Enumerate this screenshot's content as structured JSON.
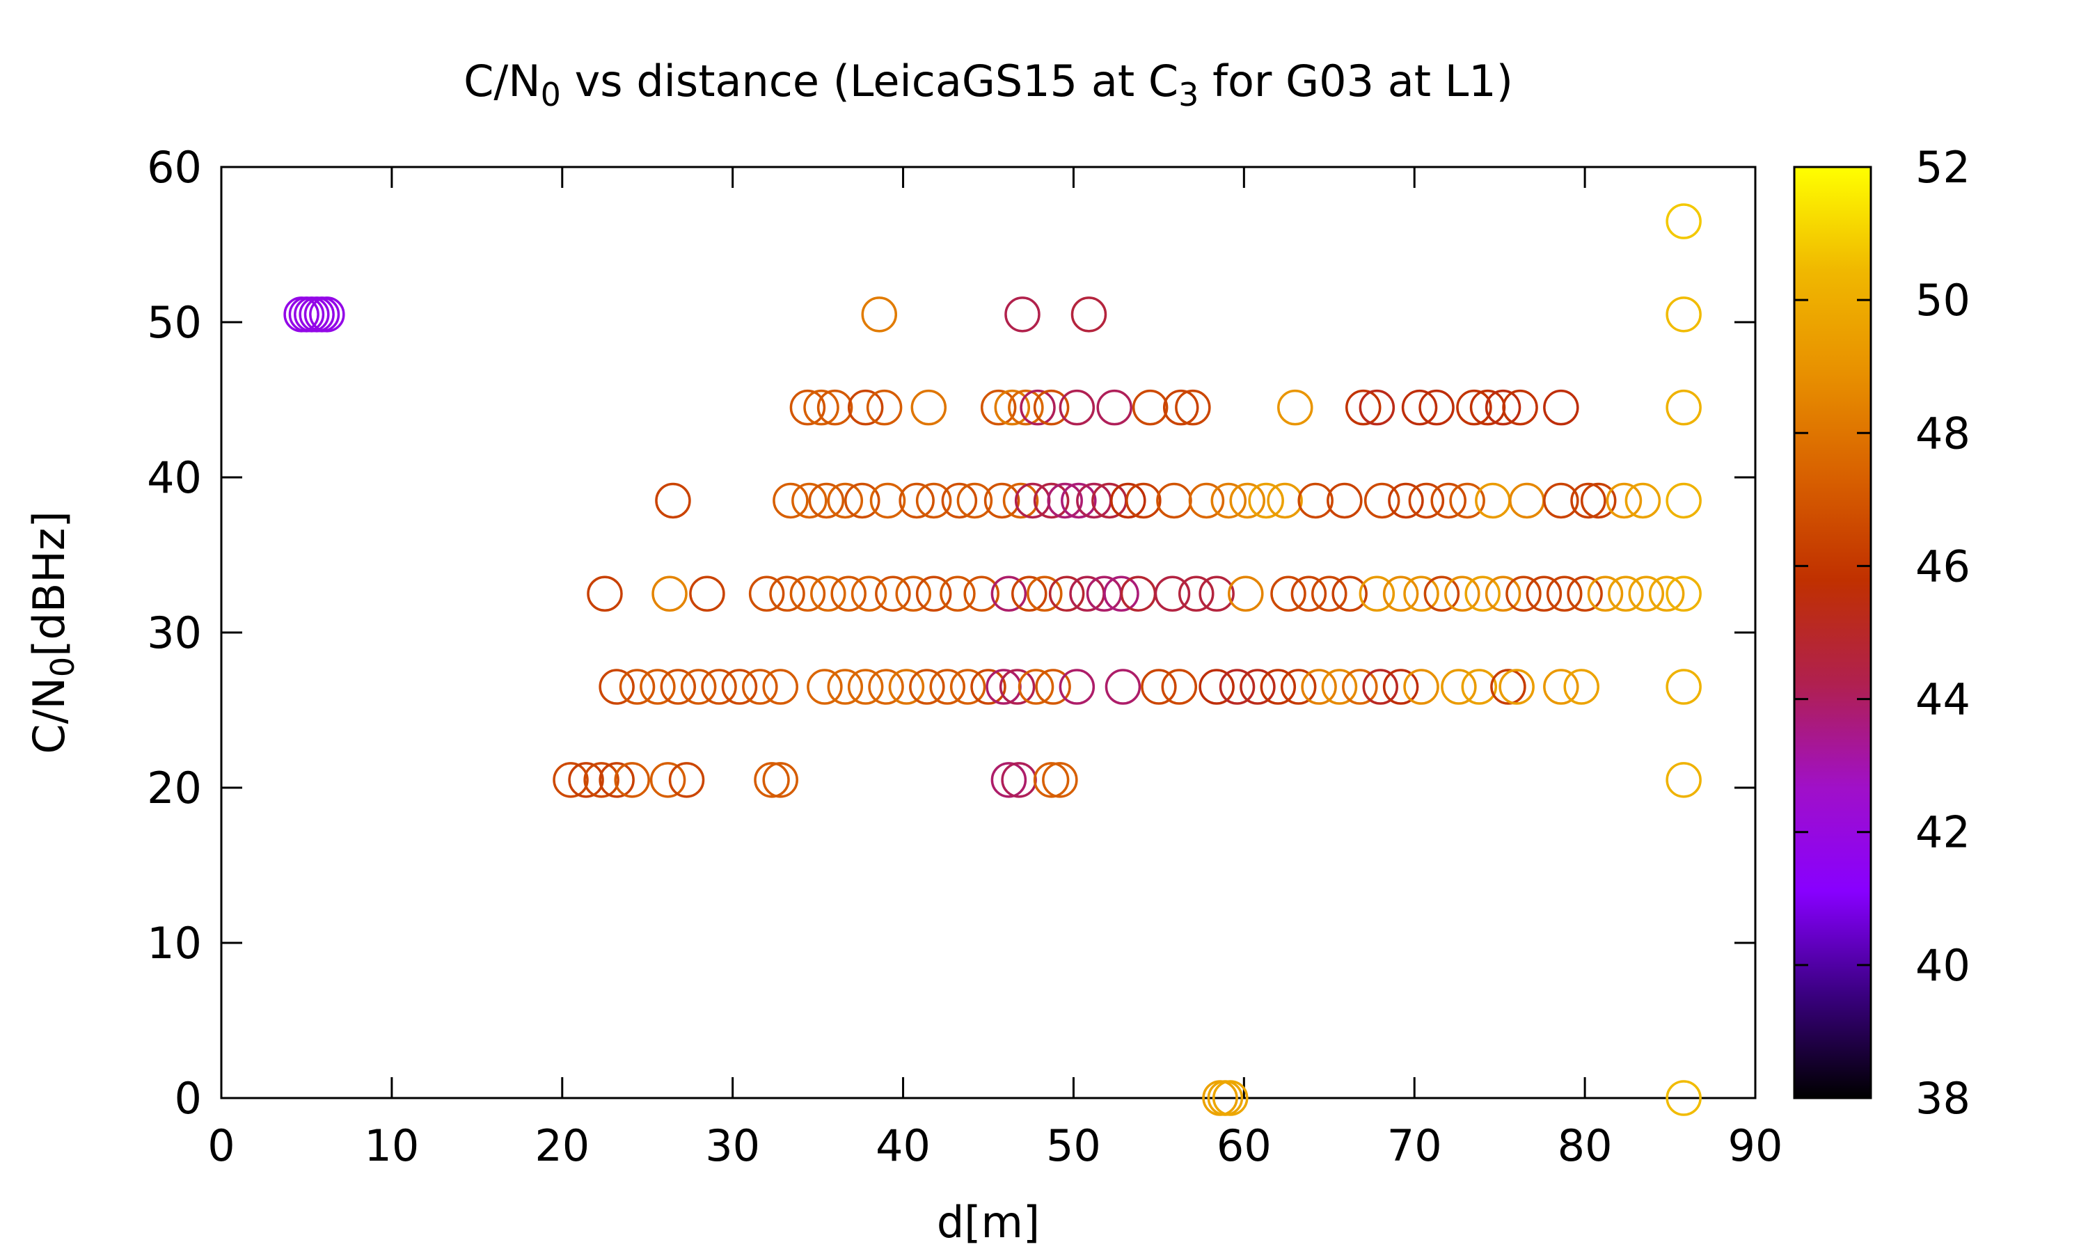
{
  "chart_data": {
    "type": "scatter",
    "title": {
      "pre": "C/N",
      "sub1": "0",
      "mid": " vs distance (LeicaGS15 at C",
      "sub2": "3",
      "post": " for G03 at L1)"
    },
    "xlabel": "d[m]",
    "ylabel": {
      "pre": "C/N",
      "sub": "0",
      "post": "[dBHz]"
    },
    "xlim": [
      0,
      90
    ],
    "ylim": [
      0,
      60
    ],
    "xticks": [
      0,
      10,
      20,
      30,
      40,
      50,
      60,
      70,
      80,
      90
    ],
    "yticks": [
      0,
      10,
      20,
      30,
      40,
      50,
      60
    ],
    "colorbar": {
      "range": [
        38,
        52
      ],
      "ticks": [
        38,
        40,
        42,
        44,
        46,
        48,
        50,
        52
      ],
      "colormap": [
        "#000000",
        "#3a0080",
        "#8800ff",
        "#a010c8",
        "#b02050",
        "#c03000",
        "#d86000",
        "#e89000",
        "#f0b800",
        "#ffff00"
      ]
    },
    "marker": "open-circle",
    "grid": false,
    "points": [
      [
        5,
        50.5,
        41.8
      ],
      [
        5.3,
        50.5,
        41.8
      ],
      [
        5.6,
        50.5,
        41.8
      ],
      [
        5.9,
        50.5,
        41.8
      ],
      [
        6.2,
        50.5,
        41.8
      ],
      [
        4.7,
        50.5,
        41.8
      ],
      [
        38.6,
        50.5,
        48.2
      ],
      [
        47,
        50.5,
        44.3
      ],
      [
        50.9,
        50.5,
        44.6
      ],
      [
        34.4,
        44.5,
        47
      ],
      [
        35.2,
        44.5,
        47.3
      ],
      [
        36,
        44.5,
        47.1
      ],
      [
        37.8,
        44.5,
        46.5
      ],
      [
        38.9,
        44.5,
        47.2
      ],
      [
        41.5,
        44.5,
        48
      ],
      [
        45.6,
        44.5,
        47
      ],
      [
        46.4,
        44.5,
        48.2
      ],
      [
        47.2,
        44.5,
        47.6
      ],
      [
        47.9,
        44.5,
        44.1
      ],
      [
        48.7,
        44.5,
        46.8
      ],
      [
        50.2,
        44.5,
        44.2
      ],
      [
        52.4,
        44.5,
        44.1
      ],
      [
        54.5,
        44.5,
        46.6
      ],
      [
        56.3,
        44.5,
        46.4
      ],
      [
        57,
        44.5,
        46.5
      ],
      [
        63,
        44.5,
        49.1
      ],
      [
        67,
        44.5,
        45.9
      ],
      [
        67.8,
        44.5,
        45.3
      ],
      [
        70.3,
        44.5,
        45.6
      ],
      [
        71.3,
        44.5,
        45.6
      ],
      [
        73.5,
        44.5,
        45.9
      ],
      [
        74.3,
        44.5,
        45.8
      ],
      [
        75.2,
        44.5,
        45.5
      ],
      [
        76.2,
        44.5,
        45.9
      ],
      [
        78.6,
        44.5,
        45.6
      ],
      [
        85.8,
        44.5,
        50.2
      ],
      [
        26.5,
        38.5,
        46.4
      ],
      [
        33.4,
        38.5,
        47.3
      ],
      [
        34.5,
        38.5,
        47.4
      ],
      [
        35.5,
        38.5,
        47.1
      ],
      [
        36.6,
        38.5,
        47.4
      ],
      [
        37.6,
        38.5,
        46.8
      ],
      [
        39.1,
        38.5,
        47.4
      ],
      [
        40.8,
        38.5,
        46.9
      ],
      [
        41.8,
        38.5,
        47.1
      ],
      [
        43.3,
        38.5,
        46.8
      ],
      [
        44.2,
        38.5,
        47.2
      ],
      [
        45.8,
        38.5,
        46.9
      ],
      [
        46.9,
        38.5,
        47.4
      ],
      [
        47.6,
        38.5,
        44.3
      ],
      [
        48.7,
        38.5,
        44.5
      ],
      [
        49.5,
        38.5,
        43.8
      ],
      [
        50.3,
        38.5,
        43.7
      ],
      [
        51.2,
        38.5,
        44.2
      ],
      [
        52.1,
        38.5,
        44.6
      ],
      [
        53.2,
        38.5,
        45.7
      ],
      [
        54.1,
        38.5,
        46.3
      ],
      [
        55.9,
        38.5,
        46.9
      ],
      [
        57.8,
        38.5,
        47.6
      ],
      [
        59.1,
        38.5,
        48.3
      ],
      [
        60.2,
        38.5,
        48.8
      ],
      [
        61.3,
        38.5,
        49.5
      ],
      [
        62.4,
        38.5,
        49.3
      ],
      [
        64.2,
        38.5,
        46.6
      ],
      [
        65.9,
        38.5,
        46.4
      ],
      [
        68.1,
        38.5,
        46.6
      ],
      [
        69.5,
        38.5,
        46.1
      ],
      [
        70.7,
        38.5,
        46.4
      ],
      [
        72,
        38.5,
        46.7
      ],
      [
        73.1,
        38.5,
        47.1
      ],
      [
        74.6,
        38.5,
        49.3
      ],
      [
        76.6,
        38.5,
        48.6
      ],
      [
        78.6,
        38.5,
        46.4
      ],
      [
        80.2,
        38.5,
        46.3
      ],
      [
        80.8,
        38.5,
        46.3
      ],
      [
        82.3,
        38.5,
        49.2
      ],
      [
        83.4,
        38.5,
        49.6
      ],
      [
        85.8,
        38.5,
        50.2
      ],
      [
        22.5,
        32.5,
        46.3
      ],
      [
        26.3,
        32.5,
        48.5
      ],
      [
        28.5,
        32.5,
        46.4
      ],
      [
        32,
        32.5,
        46.8
      ],
      [
        33.2,
        32.5,
        46.9
      ],
      [
        34.4,
        32.5,
        47.2
      ],
      [
        35.6,
        32.5,
        47.6
      ],
      [
        36.8,
        32.5,
        47.1
      ],
      [
        38,
        32.5,
        47.4
      ],
      [
        39.4,
        32.5,
        46.8
      ],
      [
        40.6,
        32.5,
        47.3
      ],
      [
        41.8,
        32.5,
        46.6
      ],
      [
        43.2,
        32.5,
        47.1
      ],
      [
        44.6,
        32.5,
        46.9
      ],
      [
        46.2,
        32.5,
        43.9
      ],
      [
        47.4,
        32.5,
        46.5
      ],
      [
        48.3,
        32.5,
        47.3
      ],
      [
        49.6,
        32.5,
        44.8
      ],
      [
        50.8,
        32.5,
        44.3
      ],
      [
        51.8,
        32.5,
        43.9
      ],
      [
        52.8,
        32.5,
        43.7
      ],
      [
        53.8,
        32.5,
        44.8
      ],
      [
        55.8,
        32.5,
        44.5
      ],
      [
        57.2,
        32.5,
        44.6
      ],
      [
        58.4,
        32.5,
        44.6
      ],
      [
        60.1,
        32.5,
        48.5
      ],
      [
        62.6,
        32.5,
        46.6
      ],
      [
        63.8,
        32.5,
        46.5
      ],
      [
        65,
        32.5,
        46.6
      ],
      [
        66.2,
        32.5,
        46.3
      ],
      [
        67.8,
        32.5,
        49.3
      ],
      [
        69.2,
        32.5,
        48.8
      ],
      [
        70.4,
        32.5,
        49.1
      ],
      [
        71.6,
        32.5,
        46.5
      ],
      [
        72.8,
        32.5,
        48.9
      ],
      [
        74,
        32.5,
        49.6
      ],
      [
        75.2,
        32.5,
        48.7
      ],
      [
        76.4,
        32.5,
        46.5
      ],
      [
        77.6,
        32.5,
        46.3
      ],
      [
        78.8,
        32.5,
        46.4
      ],
      [
        80,
        32.5,
        46.4
      ],
      [
        81.2,
        32.5,
        49.2
      ],
      [
        82.4,
        32.5,
        49.5
      ],
      [
        83.6,
        32.5,
        49.6
      ],
      [
        84.8,
        32.5,
        49.8
      ],
      [
        85.8,
        32.5,
        50.2
      ],
      [
        23.2,
        26.5,
        46.5
      ],
      [
        24.4,
        26.5,
        47
      ],
      [
        25.6,
        26.5,
        47.2
      ],
      [
        26.8,
        26.5,
        46.8
      ],
      [
        28,
        26.5,
        47.1
      ],
      [
        29.2,
        26.5,
        46.8
      ],
      [
        30.4,
        26.5,
        46.6
      ],
      [
        31.6,
        26.5,
        47.1
      ],
      [
        32.8,
        26.5,
        47.2
      ],
      [
        35.4,
        26.5,
        47.5
      ],
      [
        36.6,
        26.5,
        47.6
      ],
      [
        37.8,
        26.5,
        47.6
      ],
      [
        39,
        26.5,
        47.5
      ],
      [
        40.2,
        26.5,
        48
      ],
      [
        41.4,
        26.5,
        46.9
      ],
      [
        42.6,
        26.5,
        47.1
      ],
      [
        43.8,
        26.5,
        47.3
      ],
      [
        45,
        26.5,
        46.5
      ],
      [
        45.9,
        26.5,
        43.9
      ],
      [
        46.7,
        26.5,
        44.2
      ],
      [
        47.8,
        26.5,
        47.4
      ],
      [
        48.8,
        26.5,
        47.1
      ],
      [
        50.2,
        26.5,
        43.9
      ],
      [
        52.9,
        26.5,
        43.9
      ],
      [
        55,
        26.5,
        46.5
      ],
      [
        56.2,
        26.5,
        46.6
      ],
      [
        58.4,
        26.5,
        45.6
      ],
      [
        59.6,
        26.5,
        45.1
      ],
      [
        60.8,
        26.5,
        45.3
      ],
      [
        62,
        26.5,
        45.9
      ],
      [
        63.2,
        26.5,
        46.1
      ],
      [
        64.4,
        26.5,
        48.4
      ],
      [
        65.6,
        26.5,
        48.7
      ],
      [
        66.8,
        26.5,
        47.6
      ],
      [
        68,
        26.5,
        45.1
      ],
      [
        69.2,
        26.5,
        45.6
      ],
      [
        70.4,
        26.5,
        48.9
      ],
      [
        72.6,
        26.5,
        49.3
      ],
      [
        73.8,
        26.5,
        49.5
      ],
      [
        75.5,
        26.5,
        46.2
      ],
      [
        76,
        26.5,
        49.4
      ],
      [
        78.6,
        26.5,
        49.2
      ],
      [
        79.8,
        26.5,
        49.6
      ],
      [
        85.8,
        26.5,
        50.2
      ],
      [
        20.5,
        20.5,
        46.6
      ],
      [
        21.4,
        20.5,
        46.3
      ],
      [
        22.3,
        20.5,
        46.6
      ],
      [
        23.2,
        20.5,
        46.3
      ],
      [
        24.1,
        20.5,
        47.2
      ],
      [
        26.2,
        20.5,
        47.3
      ],
      [
        27.3,
        20.5,
        46.5
      ],
      [
        32.3,
        20.5,
        47.2
      ],
      [
        32.8,
        20.5,
        47.2
      ],
      [
        46.2,
        20.5,
        43.9
      ],
      [
        46.8,
        20.5,
        44.1
      ],
      [
        48.7,
        20.5,
        47.3
      ],
      [
        49.2,
        20.5,
        47.3
      ],
      [
        85.8,
        20.5,
        50.2
      ],
      [
        85.8,
        56.5,
        50.8
      ],
      [
        85.8,
        50.5,
        50.5
      ],
      [
        58.6,
        0,
        49.6
      ],
      [
        58.9,
        0,
        49.7
      ],
      [
        59.2,
        0,
        49.8
      ],
      [
        85.8,
        0,
        50.5
      ]
    ]
  }
}
